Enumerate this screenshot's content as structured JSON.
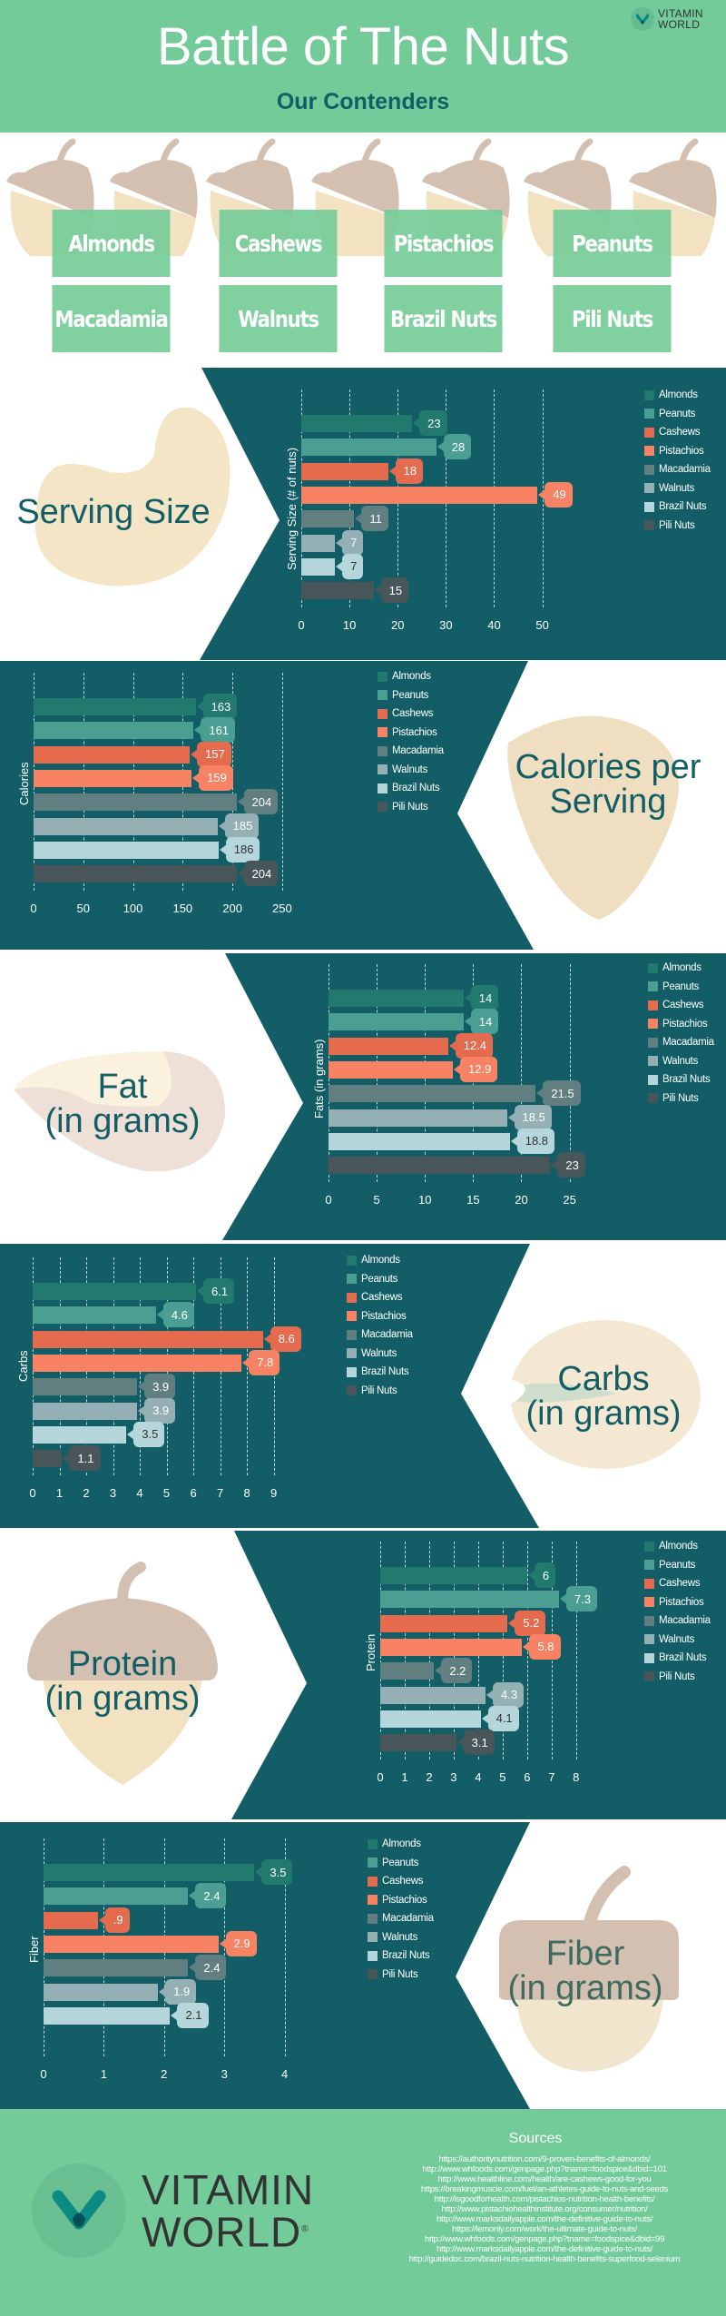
{
  "header": {
    "title": "Battle of The Nuts",
    "subtitle": "Our Contenders",
    "logo": {
      "line1": "VITAMIN",
      "line2": "WORLD",
      "icon": "vitamin-world-v-icon"
    },
    "background_color": "#72cb98"
  },
  "contenders": [
    "Almonds",
    "Cashews",
    "Pistachios",
    "Peanuts",
    "Macadamia",
    "Walnuts",
    "Brazil Nuts",
    "Pili Nuts"
  ],
  "legend": {
    "items": [
      {
        "label": "Almonds",
        "color": "#217a6d"
      },
      {
        "label": "Peanuts",
        "color": "#4a9f92"
      },
      {
        "label": "Cashews",
        "color": "#e46b4e"
      },
      {
        "label": "Pistachios",
        "color": "#f78264"
      },
      {
        "label": "Macadamia",
        "color": "#617e80"
      },
      {
        "label": "Walnuts",
        "color": "#94b0b4"
      },
      {
        "label": "Brazil Nuts",
        "color": "#b5d6da"
      },
      {
        "label": "Pili Nuts",
        "color": "#485659"
      }
    ]
  },
  "sections": {
    "serving": {
      "label_line1": "Serving Size",
      "label_line2": ""
    },
    "calories": {
      "label_line1": "Calories per",
      "label_line2": "Serving"
    },
    "fat": {
      "label_line1": "Fat",
      "label_line2": "(in grams)"
    },
    "carbs": {
      "label_line1": "Carbs",
      "label_line2": "(in grams)"
    },
    "protein": {
      "label_line1": "Protein",
      "label_line2": "(in grams)"
    },
    "fiber": {
      "label_line1": "Fiber",
      "label_line2": "(in grams)"
    }
  },
  "chart_data": [
    {
      "type": "bar",
      "orientation": "horizontal",
      "title": "Serving Size",
      "xlabel": "",
      "ylabel": "Serving Size (# of nuts)",
      "categories": [
        "Almonds",
        "Peanuts",
        "Cashews",
        "Pistachios",
        "Macadamia",
        "Walnuts",
        "Brazil Nuts",
        "Pili Nuts"
      ],
      "values": [
        23,
        28,
        18,
        49,
        11,
        7,
        7,
        15
      ],
      "value_labels": [
        "23",
        "28",
        "18",
        "49",
        "11",
        "7",
        "7",
        "15"
      ],
      "xlim": [
        0,
        50
      ],
      "xticks": [
        "0",
        "10",
        "20",
        "30",
        "40",
        "50"
      ],
      "grid": true,
      "legend_position": "right"
    },
    {
      "type": "bar",
      "orientation": "horizontal",
      "title": "Calories per Serving",
      "xlabel": "",
      "ylabel": "Calories",
      "categories": [
        "Almonds",
        "Peanuts",
        "Cashews",
        "Pistachios",
        "Macadamia",
        "Walnuts",
        "Brazil Nuts",
        "Pili Nuts"
      ],
      "values": [
        163,
        161,
        157,
        159,
        204,
        185,
        186,
        204
      ],
      "value_labels": [
        "163",
        "161",
        "157",
        "159",
        "204",
        "185",
        "186",
        "204"
      ],
      "xlim": [
        0,
        250
      ],
      "xticks": [
        "0",
        "50",
        "100",
        "150",
        "200",
        "250"
      ],
      "grid": true,
      "legend_position": "right"
    },
    {
      "type": "bar",
      "orientation": "horizontal",
      "title": "Fat (in grams)",
      "xlabel": "",
      "ylabel": "Fats (in grams)",
      "categories": [
        "Almonds",
        "Peanuts",
        "Cashews",
        "Pistachios",
        "Macadamia",
        "Walnuts",
        "Brazil Nuts",
        "Pili Nuts"
      ],
      "values": [
        14,
        14,
        12.4,
        12.9,
        21.5,
        18.5,
        18.8,
        23
      ],
      "value_labels": [
        "14",
        "14",
        "12.4",
        "12.9",
        "21.5",
        "18.5",
        "18.8",
        "23"
      ],
      "xlim": [
        0,
        25
      ],
      "xticks": [
        "0",
        "5",
        "10",
        "15",
        "20",
        "25"
      ],
      "grid": true,
      "legend_position": "right"
    },
    {
      "type": "bar",
      "orientation": "horizontal",
      "title": "Carbs (in grams)",
      "xlabel": "",
      "ylabel": "Carbs",
      "categories": [
        "Almonds",
        "Peanuts",
        "Cashews",
        "Pistachios",
        "Macadamia",
        "Walnuts",
        "Brazil Nuts",
        "Pili Nuts"
      ],
      "values": [
        6.1,
        4.6,
        8.6,
        7.8,
        3.9,
        3.9,
        3.5,
        1.1
      ],
      "value_labels": [
        "6.1",
        "4.6",
        "8.6",
        "7.8",
        "3.9",
        "3.9",
        "3.5",
        "1.1"
      ],
      "xlim": [
        0,
        9
      ],
      "xticks": [
        "0",
        "1",
        "2",
        "3",
        "4",
        "5",
        "6",
        "7",
        "8",
        "9"
      ],
      "grid": true,
      "legend_position": "right"
    },
    {
      "type": "bar",
      "orientation": "horizontal",
      "title": "Protein (in grams)",
      "xlabel": "",
      "ylabel": "Protein",
      "categories": [
        "Almonds",
        "Peanuts",
        "Cashews",
        "Pistachios",
        "Macadamia",
        "Walnuts",
        "Brazil Nuts",
        "Pili Nuts"
      ],
      "values": [
        6,
        7.3,
        5.2,
        5.8,
        2.2,
        4.3,
        4.1,
        3.1
      ],
      "value_labels": [
        "6",
        "7.3",
        "5.2",
        "5.8",
        "2.2",
        "4.3",
        "4.1",
        "3.1"
      ],
      "xlim": [
        0,
        8
      ],
      "xticks": [
        "0",
        "1",
        "2",
        "3",
        "4",
        "5",
        "6",
        "7",
        "8"
      ],
      "grid": true,
      "legend_position": "right"
    },
    {
      "type": "bar",
      "orientation": "horizontal",
      "title": "Fiber (in grams)",
      "xlabel": "",
      "ylabel": "Fiber",
      "categories": [
        "Almonds",
        "Peanuts",
        "Cashews",
        "Pistachios",
        "Macadamia",
        "Walnuts",
        "Brazil Nuts",
        "Pili Nuts"
      ],
      "values": [
        3.5,
        2.4,
        0.9,
        2.9,
        2.4,
        1.9,
        2.1,
        null
      ],
      "value_labels": [
        "3.5",
        "2.4",
        ".9",
        "2.9",
        "2.4",
        "1.9",
        "2.1",
        ""
      ],
      "xlim": [
        0,
        4
      ],
      "xticks": [
        "0",
        "1",
        "2",
        "3",
        "4"
      ],
      "grid": true,
      "legend_position": "right"
    }
  ],
  "footer": {
    "sources_title": "Sources",
    "sources": [
      "https://authoritynutrition.com/9-proven-benefits-of-almonds/",
      "http://www.whfoods.com/genpage.php?tname=foodspice&dbid=101",
      "http://www.healthline.com/health/are-cashews-good-for-you",
      "https://breakingmuscle.com/fuel/an-athletes-guide-to-nuts-and-seeds",
      "http://isgoodforhealth.com/pistachios-nutrition-health-benefits/",
      "http://www.pistachiohealthinstitute.org/consumer/nutrition/",
      "http://www.marksdailyapple.com/the-definitive-guide-to-nuts/",
      "https://lemonly.com/work/the-ultimate-guide-to-nuts/",
      "http://www.whfoods.com/genpage.php?tname=foodspice&dbid=99",
      "http://www.marksdailyapple.com/the-definitive-guide-to-nuts/",
      "http://guidedoc.com/brazil-nuts-nutrition-health-benefits-superfood-selenium"
    ],
    "logo": {
      "line1": "VITAMIN",
      "line2": "WORLD",
      "registered": "®"
    }
  }
}
